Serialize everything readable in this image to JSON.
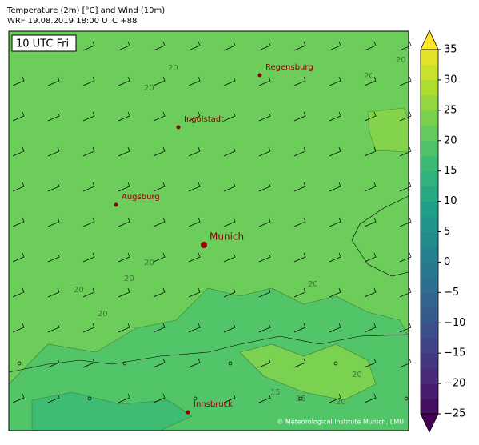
{
  "header": {
    "title": "Temperature (2m) [°C] and Wind (10m)",
    "subtitle": "WRF 19.08.2019 18:00 UTC +88"
  },
  "map": {
    "time_label": "10 UTC Fri",
    "cities": [
      {
        "name": "Regensburg"
      },
      {
        "name": "Ingolstadt"
      },
      {
        "name": "Augsburg"
      },
      {
        "name": "Munich"
      },
      {
        "name": "Innsbruck"
      }
    ],
    "contour_labels": [
      "20",
      "20",
      "20",
      "20",
      "20",
      "20",
      "20",
      "20",
      "20",
      "15",
      "15",
      "20",
      "20"
    ],
    "credit": "© Meteorological Institute Munich, LMU"
  },
  "colorbar": {
    "vlim": [
      -25,
      35
    ],
    "step": 2.5,
    "ticks": [
      35,
      30,
      25,
      20,
      15,
      10,
      5,
      0,
      {
        "value": -5,
        "label": "−5"
      },
      {
        "value": -10,
        "label": "−10"
      },
      {
        "value": -15,
        "label": "−15"
      },
      {
        "value": -20,
        "label": "−20"
      },
      {
        "value": -25,
        "label": "−25"
      }
    ]
  }
}
